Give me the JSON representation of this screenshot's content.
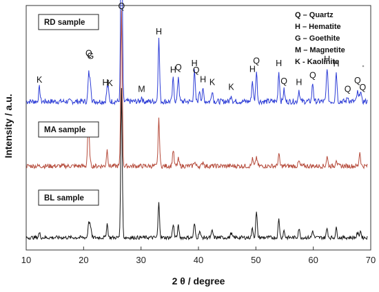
{
  "chart_data": {
    "type": "line",
    "xlabel": "2 θ  / degree",
    "ylabel": "Intensity  / a.u.",
    "xlim": [
      10,
      70
    ],
    "x_ticks": [
      10,
      20,
      30,
      40,
      50,
      60,
      70
    ],
    "y_ticks_shown": false,
    "grid": false,
    "legend": {
      "placement": "top-right",
      "items": [
        "Q – Quartz",
        "H – Hematite",
        "G – Goethite",
        "M – Magnetite",
        "K - Kaolinite"
      ]
    },
    "series": [
      {
        "name": "RD sample",
        "color": "#2b3bd6",
        "baseline": 0.62,
        "noise": 0.012,
        "peaks": [
          [
            12.3,
            0.06
          ],
          [
            20.9,
            0.12
          ],
          [
            21.2,
            0.08
          ],
          [
            24.1,
            0.05
          ],
          [
            24.3,
            0.04
          ],
          [
            26.6,
            1.0
          ],
          [
            30.1,
            0.02
          ],
          [
            33.1,
            0.27
          ],
          [
            35.6,
            0.1
          ],
          [
            36.5,
            0.11
          ],
          [
            39.3,
            0.13
          ],
          [
            40.2,
            0.05
          ],
          [
            40.8,
            0.05
          ],
          [
            42.4,
            0.05
          ],
          [
            45.7,
            0.03
          ],
          [
            49.4,
            0.09
          ],
          [
            50.1,
            0.13
          ],
          [
            54.0,
            0.13
          ],
          [
            54.9,
            0.05
          ],
          [
            57.5,
            0.05
          ],
          [
            59.9,
            0.08
          ],
          [
            62.4,
            0.15
          ],
          [
            64.0,
            0.13
          ],
          [
            66.0,
            0.02
          ],
          [
            67.7,
            0.04
          ],
          [
            68.2,
            0.05
          ]
        ]
      },
      {
        "name": "MA sample",
        "color": "#b54a3a",
        "baseline": 0.34,
        "noise": 0.01,
        "peaks": [
          [
            20.8,
            0.16
          ],
          [
            21.0,
            0.06
          ],
          [
            24.1,
            0.07
          ],
          [
            26.6,
            0.68
          ],
          [
            33.1,
            0.2
          ],
          [
            35.6,
            0.07
          ],
          [
            36.5,
            0.03
          ],
          [
            39.3,
            0.02
          ],
          [
            40.8,
            0.02
          ],
          [
            49.4,
            0.03
          ],
          [
            50.1,
            0.04
          ],
          [
            54.0,
            0.05
          ],
          [
            57.5,
            0.02
          ],
          [
            62.4,
            0.04
          ],
          [
            64.0,
            0.03
          ],
          [
            68.1,
            0.06
          ]
        ]
      },
      {
        "name": "BL sample",
        "color": "#111111",
        "baseline": 0.03,
        "noise": 0.008,
        "peaks": [
          [
            12.3,
            0.02
          ],
          [
            20.9,
            0.07
          ],
          [
            21.2,
            0.05
          ],
          [
            24.1,
            0.06
          ],
          [
            26.6,
            0.64
          ],
          [
            33.1,
            0.15
          ],
          [
            35.6,
            0.06
          ],
          [
            36.5,
            0.05
          ],
          [
            39.3,
            0.06
          ],
          [
            40.2,
            0.03
          ],
          [
            42.4,
            0.03
          ],
          [
            45.7,
            0.02
          ],
          [
            49.4,
            0.04
          ],
          [
            50.1,
            0.11
          ],
          [
            54.0,
            0.08
          ],
          [
            54.9,
            0.03
          ],
          [
            57.5,
            0.04
          ],
          [
            59.9,
            0.03
          ],
          [
            62.4,
            0.04
          ],
          [
            64.0,
            0.04
          ],
          [
            67.7,
            0.02
          ],
          [
            68.2,
            0.03
          ]
        ]
      }
    ],
    "annotations": [
      {
        "text": "K",
        "x": 12.3
      },
      {
        "text": "Q",
        "x": 20.9
      },
      {
        "text": "G",
        "x": 21.2
      },
      {
        "text": "H",
        "x": 23.8
      },
      {
        "text": "K",
        "x": 24.6
      },
      {
        "text": "Q",
        "x": 26.6
      },
      {
        "text": "M",
        "x": 30.1
      },
      {
        "text": "H",
        "x": 33.1
      },
      {
        "text": "H",
        "x": 35.6
      },
      {
        "text": "Q",
        "x": 36.5
      },
      {
        "text": "H",
        "x": 39.3
      },
      {
        "text": "Q",
        "x": 39.6
      },
      {
        "text": "H",
        "x": 40.8
      },
      {
        "text": "K",
        "x": 42.4
      },
      {
        "text": "K",
        "x": 45.7
      },
      {
        "text": "H",
        "x": 49.4
      },
      {
        "text": "Q",
        "x": 50.1
      },
      {
        "text": "H",
        "x": 54.0
      },
      {
        "text": "Q",
        "x": 54.9
      },
      {
        "text": "H",
        "x": 57.5
      },
      {
        "text": "Q",
        "x": 59.9
      },
      {
        "text": "H",
        "x": 62.4
      },
      {
        "text": "H",
        "x": 64.0
      },
      {
        "text": "Q",
        "x": 66.0
      },
      {
        "text": "Q",
        "x": 67.7
      },
      {
        "text": "Q",
        "x": 68.6
      }
    ]
  }
}
